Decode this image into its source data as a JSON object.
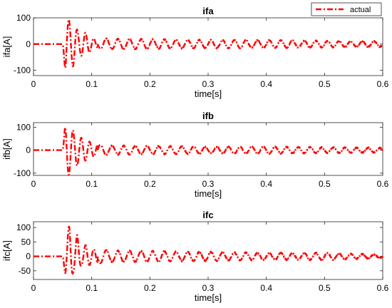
{
  "legend": {
    "label": "actual",
    "color": "#ff0000",
    "position": "top-right"
  },
  "chart_data": [
    {
      "type": "line",
      "title": "ifa",
      "xlabel": "time[s]",
      "ylabel": "ifa[A]",
      "xlim": [
        0,
        0.6
      ],
      "ylim": [
        -120,
        100
      ],
      "xticks": [
        0,
        0.1,
        0.2,
        0.3,
        0.4,
        0.5,
        0.6
      ],
      "yticks": [
        -100,
        0,
        100
      ],
      "grid": false,
      "series": [
        {
          "name": "actual",
          "style": "dash-dot",
          "color": "#ff0000",
          "fault_time": 0.05,
          "frequency_hz": 50,
          "points": [
            [
              0,
              0
            ],
            [
              0.05,
              0
            ],
            [
              0.055,
              -110
            ],
            [
              0.062,
              90
            ],
            [
              0.068,
              -85
            ],
            [
              0.075,
              55
            ],
            [
              0.08,
              -45
            ],
            [
              0.088,
              45
            ],
            [
              0.095,
              -35
            ],
            [
              0.1,
              25
            ],
            [
              0.11,
              15
            ],
            [
              0.12,
              -22
            ],
            [
              0.13,
              20
            ],
            [
              0.2,
              -18
            ],
            [
              0.3,
              15
            ],
            [
              0.4,
              -15
            ],
            [
              0.5,
              12
            ],
            [
              0.6,
              10
            ]
          ]
        }
      ]
    },
    {
      "type": "line",
      "title": "ifb",
      "xlabel": "time[s]",
      "ylabel": "ifb[A]",
      "xlim": [
        0,
        0.6
      ],
      "ylim": [
        -110,
        120
      ],
      "xticks": [
        0,
        0.1,
        0.2,
        0.3,
        0.4,
        0.5,
        0.6
      ],
      "yticks": [
        -100,
        0,
        100
      ],
      "grid": false,
      "series": [
        {
          "name": "actual",
          "style": "dash-dot",
          "color": "#ff0000",
          "fault_time": 0.05,
          "frequency_hz": 50,
          "points": [
            [
              0,
              0
            ],
            [
              0.05,
              0
            ],
            [
              0.055,
              120
            ],
            [
              0.062,
              -105
            ],
            [
              0.07,
              80
            ],
            [
              0.078,
              -60
            ],
            [
              0.085,
              50
            ],
            [
              0.095,
              -40
            ],
            [
              0.1,
              30
            ],
            [
              0.11,
              -25
            ],
            [
              0.13,
              20
            ],
            [
              0.2,
              -18
            ],
            [
              0.3,
              15
            ],
            [
              0.4,
              -15
            ],
            [
              0.5,
              12
            ],
            [
              0.6,
              10
            ]
          ]
        }
      ]
    },
    {
      "type": "line",
      "title": "ifc",
      "xlabel": "time[s]",
      "ylabel": "ifc[A]",
      "xlim": [
        0,
        0.6
      ],
      "ylim": [
        -80,
        120
      ],
      "xticks": [
        0,
        0.1,
        0.2,
        0.3,
        0.4,
        0.5,
        0.6
      ],
      "yticks": [
        -50,
        0,
        50,
        100
      ],
      "grid": false,
      "series": [
        {
          "name": "actual",
          "style": "dash-dot",
          "color": "#ff0000",
          "fault_time": 0.05,
          "frequency_hz": 50,
          "points": [
            [
              0,
              0
            ],
            [
              0.05,
              0
            ],
            [
              0.055,
              -70
            ],
            [
              0.062,
              110
            ],
            [
              0.068,
              -55
            ],
            [
              0.075,
              75
            ],
            [
              0.082,
              -30
            ],
            [
              0.09,
              40
            ],
            [
              0.1,
              -25
            ],
            [
              0.11,
              25
            ],
            [
              0.13,
              -20
            ],
            [
              0.2,
              18
            ],
            [
              0.3,
              -15
            ],
            [
              0.4,
              12
            ],
            [
              0.5,
              -12
            ],
            [
              0.6,
              -5
            ]
          ]
        }
      ]
    }
  ]
}
